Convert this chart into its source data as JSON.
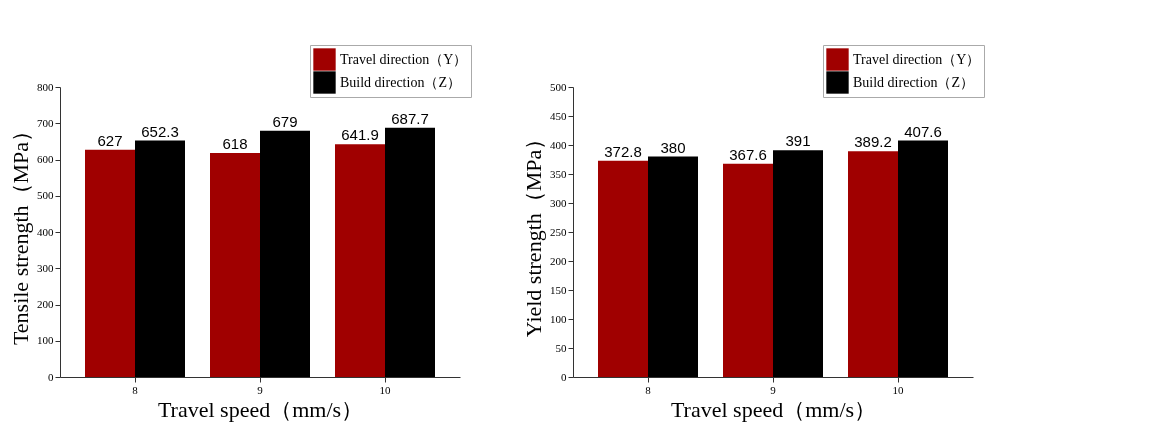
{
  "chart_data": [
    {
      "type": "bar",
      "xlabel": "Travel speed（mm/s）",
      "ylabel": "Tensile strength（MPa）",
      "categories": [
        "8",
        "9",
        "10"
      ],
      "series": [
        {
          "name": "Travel direction（Y）",
          "color": "#a00000",
          "values": [
            627,
            618,
            641.9
          ]
        },
        {
          "name": "Build  direction（Z）",
          "color": "#000000",
          "values": [
            652.3,
            679,
            687.7
          ]
        }
      ],
      "ylim": [
        0,
        800
      ],
      "yticks": [
        0,
        100,
        200,
        300,
        400,
        500,
        600,
        700,
        800
      ],
      "grid": false,
      "legend": "top right",
      "data_labels": true
    },
    {
      "type": "bar",
      "xlabel": "Travel speed（mm/s）",
      "ylabel": "Yield strength（MPa）",
      "categories": [
        "8",
        "9",
        "10"
      ],
      "series": [
        {
          "name": "Travel direction（Y）",
          "color": "#a00000",
          "values": [
            372.8,
            367.6,
            389.2
          ]
        },
        {
          "name": "Build  direction（Z）",
          "color": "#000000",
          "values": [
            380,
            391,
            407.6
          ]
        }
      ],
      "ylim": [
        0,
        500
      ],
      "yticks": [
        0,
        50,
        100,
        150,
        200,
        250,
        300,
        350,
        400,
        450,
        500
      ],
      "grid": false,
      "legend": "top right",
      "data_labels": true
    }
  ]
}
